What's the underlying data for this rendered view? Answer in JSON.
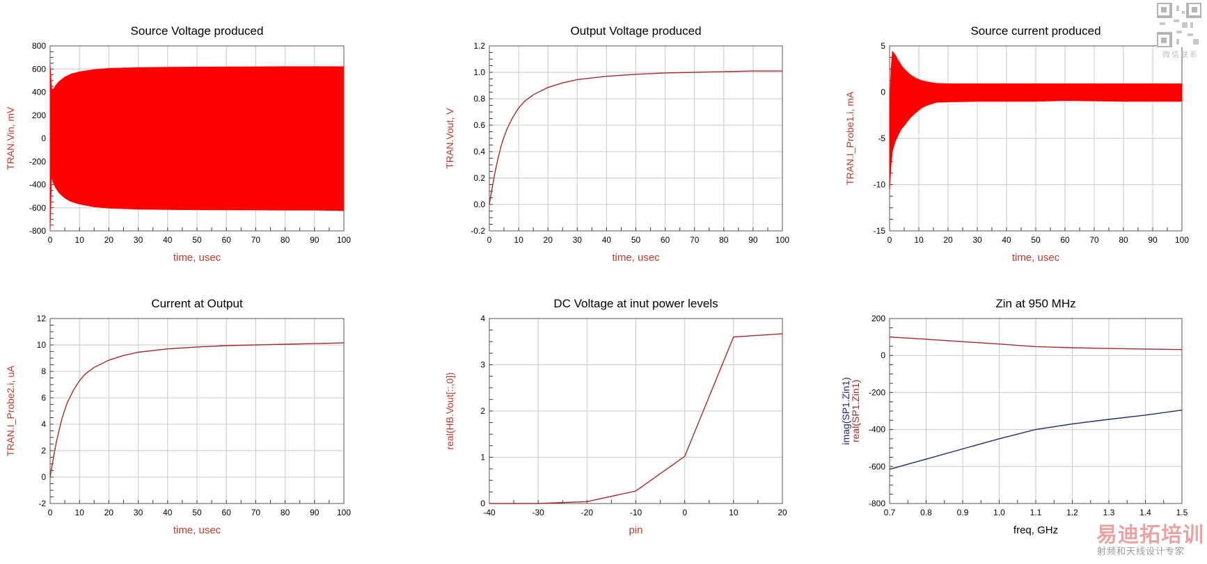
{
  "colors": {
    "red": "#ff0000",
    "darkred": "#a52a2a",
    "navy": "#1f2a6e",
    "grid": "#c8c8c8",
    "label": "#c0392b"
  },
  "watermark": {
    "qr_caption": "微信联系",
    "brand": "易迪拓培训",
    "subtitle": "射频和天线设计专家"
  },
  "chart_data": [
    {
      "id": "source-voltage",
      "type": "area",
      "title": "Source Voltage produced",
      "xlabel": "time, usec",
      "ylabel": "TRAN.Vin, mV",
      "xlim": [
        0,
        100
      ],
      "ylim": [
        -800,
        800
      ],
      "xticks": [
        0,
        10,
        20,
        30,
        40,
        50,
        60,
        70,
        80,
        90,
        100
      ],
      "yticks": [
        -800,
        -600,
        -400,
        -200,
        0,
        200,
        400,
        600,
        800
      ],
      "series": [
        {
          "color": "#ff0000",
          "fill": true,
          "x": [
            0,
            0.5,
            1,
            2,
            3,
            5,
            7,
            10,
            15,
            20,
            30,
            40,
            50,
            60,
            70,
            80,
            90,
            100
          ],
          "upper": [
            640,
            430,
            420,
            460,
            490,
            530,
            555,
            575,
            595,
            605,
            612,
            615,
            617,
            618,
            619,
            620,
            620,
            620
          ],
          "lower": [
            -780,
            -320,
            -380,
            -430,
            -470,
            -515,
            -545,
            -568,
            -592,
            -603,
            -612,
            -615,
            -617,
            -618,
            -619,
            -620,
            -620,
            -625
          ]
        }
      ]
    },
    {
      "id": "output-voltage",
      "type": "line",
      "title": "Output Voltage produced",
      "xlabel": "time, usec",
      "ylabel": "TRAN.Vout, V",
      "xlim": [
        0,
        100
      ],
      "ylim": [
        -0.2,
        1.2
      ],
      "xticks": [
        0,
        10,
        20,
        30,
        40,
        50,
        60,
        70,
        80,
        90,
        100
      ],
      "yticks": [
        -0.2,
        0.0,
        0.2,
        0.4,
        0.6,
        0.8,
        1.0,
        1.2
      ],
      "series": [
        {
          "color": "#a52a2a",
          "x": [
            0,
            1,
            2,
            3,
            4,
            5,
            6,
            8,
            10,
            12,
            15,
            20,
            25,
            30,
            40,
            50,
            60,
            70,
            80,
            90,
            100
          ],
          "y": [
            0.0,
            0.13,
            0.25,
            0.35,
            0.44,
            0.51,
            0.57,
            0.66,
            0.73,
            0.78,
            0.83,
            0.885,
            0.92,
            0.945,
            0.97,
            0.985,
            0.995,
            1.0,
            1.005,
            1.01,
            1.01
          ]
        }
      ]
    },
    {
      "id": "source-current",
      "type": "area",
      "title": "Source current produced",
      "xlabel": "time, usec",
      "ylabel": "TRAN.I_Probe1.i, mA",
      "xlim": [
        0,
        100
      ],
      "ylim": [
        -15,
        5
      ],
      "xticks": [
        0,
        10,
        20,
        30,
        40,
        50,
        60,
        70,
        80,
        90,
        100
      ],
      "yticks": [
        -15,
        -10,
        -5,
        0,
        5
      ],
      "series": [
        {
          "color": "#ff0000",
          "fill": true,
          "x": [
            0,
            0.5,
            1,
            2,
            3,
            4,
            5,
            7,
            9,
            11,
            13,
            15,
            16,
            20,
            30,
            50,
            60,
            70,
            80,
            100
          ],
          "upper": [
            -2,
            2.5,
            4.4,
            4.0,
            3.4,
            2.9,
            2.5,
            1.9,
            1.5,
            1.25,
            1.1,
            1.0,
            0.95,
            0.9,
            0.9,
            0.9,
            0.9,
            0.9,
            0.9,
            0.9
          ],
          "lower": [
            -10.5,
            -7.8,
            -6.3,
            -5.3,
            -4.6,
            -4.0,
            -3.6,
            -2.8,
            -2.2,
            -1.7,
            -1.4,
            -1.2,
            -1.1,
            -1.05,
            -1.0,
            -1.0,
            -0.9,
            -0.95,
            -1.0,
            -1.0
          ]
        }
      ]
    },
    {
      "id": "current-output",
      "type": "line",
      "title": "Current at Output",
      "xlabel": "time, usec",
      "ylabel": "TRAN.I_Probe2.i, uA",
      "xlim": [
        0,
        100
      ],
      "ylim": [
        -2,
        12
      ],
      "xticks": [
        0,
        10,
        20,
        30,
        40,
        50,
        60,
        70,
        80,
        90,
        100
      ],
      "yticks": [
        -2,
        0,
        2,
        4,
        6,
        8,
        10,
        12
      ],
      "series": [
        {
          "color": "#a52a2a",
          "x": [
            0,
            1,
            2,
            3,
            4,
            5,
            6,
            8,
            10,
            12,
            15,
            20,
            25,
            30,
            40,
            50,
            60,
            70,
            80,
            90,
            100
          ],
          "y": [
            0.0,
            1.3,
            2.5,
            3.5,
            4.4,
            5.1,
            5.7,
            6.6,
            7.3,
            7.8,
            8.3,
            8.85,
            9.2,
            9.45,
            9.7,
            9.85,
            9.95,
            10.0,
            10.05,
            10.1,
            10.15
          ]
        }
      ]
    },
    {
      "id": "dc-voltage",
      "type": "line",
      "title": "DC Voltage at inut power levels",
      "xlabel": "pin",
      "ylabel": "real(HB.Vout[::,0])",
      "xlim": [
        -40,
        20
      ],
      "ylim": [
        0,
        4
      ],
      "xticks": [
        -40,
        -30,
        -20,
        -10,
        0,
        10,
        20
      ],
      "yticks": [
        0,
        1,
        2,
        3,
        4
      ],
      "series": [
        {
          "color": "#a52a2a",
          "x": [
            -40,
            -30,
            -20,
            -10,
            0,
            10,
            20
          ],
          "y": [
            0.0,
            0.0,
            0.04,
            0.27,
            1.02,
            3.6,
            3.67
          ]
        }
      ]
    },
    {
      "id": "zin",
      "type": "line",
      "title": "Zin at 950 MHz",
      "xlabel": "freq, GHz",
      "ylabel_lines": [
        {
          "text": "imag(SP1.Zin1)",
          "color": "#1f2a6e"
        },
        {
          "text": "real(SP1.Zin1)",
          "color": "#a52a2a"
        }
      ],
      "xlim": [
        0.7,
        1.5
      ],
      "ylim": [
        -800,
        200
      ],
      "xticks": [
        0.7,
        0.8,
        0.9,
        1.0,
        1.1,
        1.2,
        1.3,
        1.4,
        1.5
      ],
      "yticks": [
        -800,
        -600,
        -400,
        -200,
        0,
        200
      ],
      "series": [
        {
          "color": "#a52a2a",
          "x": [
            0.7,
            0.8,
            0.9,
            1.0,
            1.1,
            1.2,
            1.3,
            1.4,
            1.5
          ],
          "y": [
            100,
            88,
            75,
            62,
            48,
            42,
            38,
            35,
            32
          ]
        },
        {
          "color": "#1f2a6e",
          "x": [
            0.7,
            0.8,
            0.9,
            1.0,
            1.1,
            1.2,
            1.3,
            1.4,
            1.5
          ],
          "y": [
            -615,
            -560,
            -505,
            -450,
            -400,
            -370,
            -345,
            -322,
            -295
          ]
        }
      ]
    }
  ]
}
